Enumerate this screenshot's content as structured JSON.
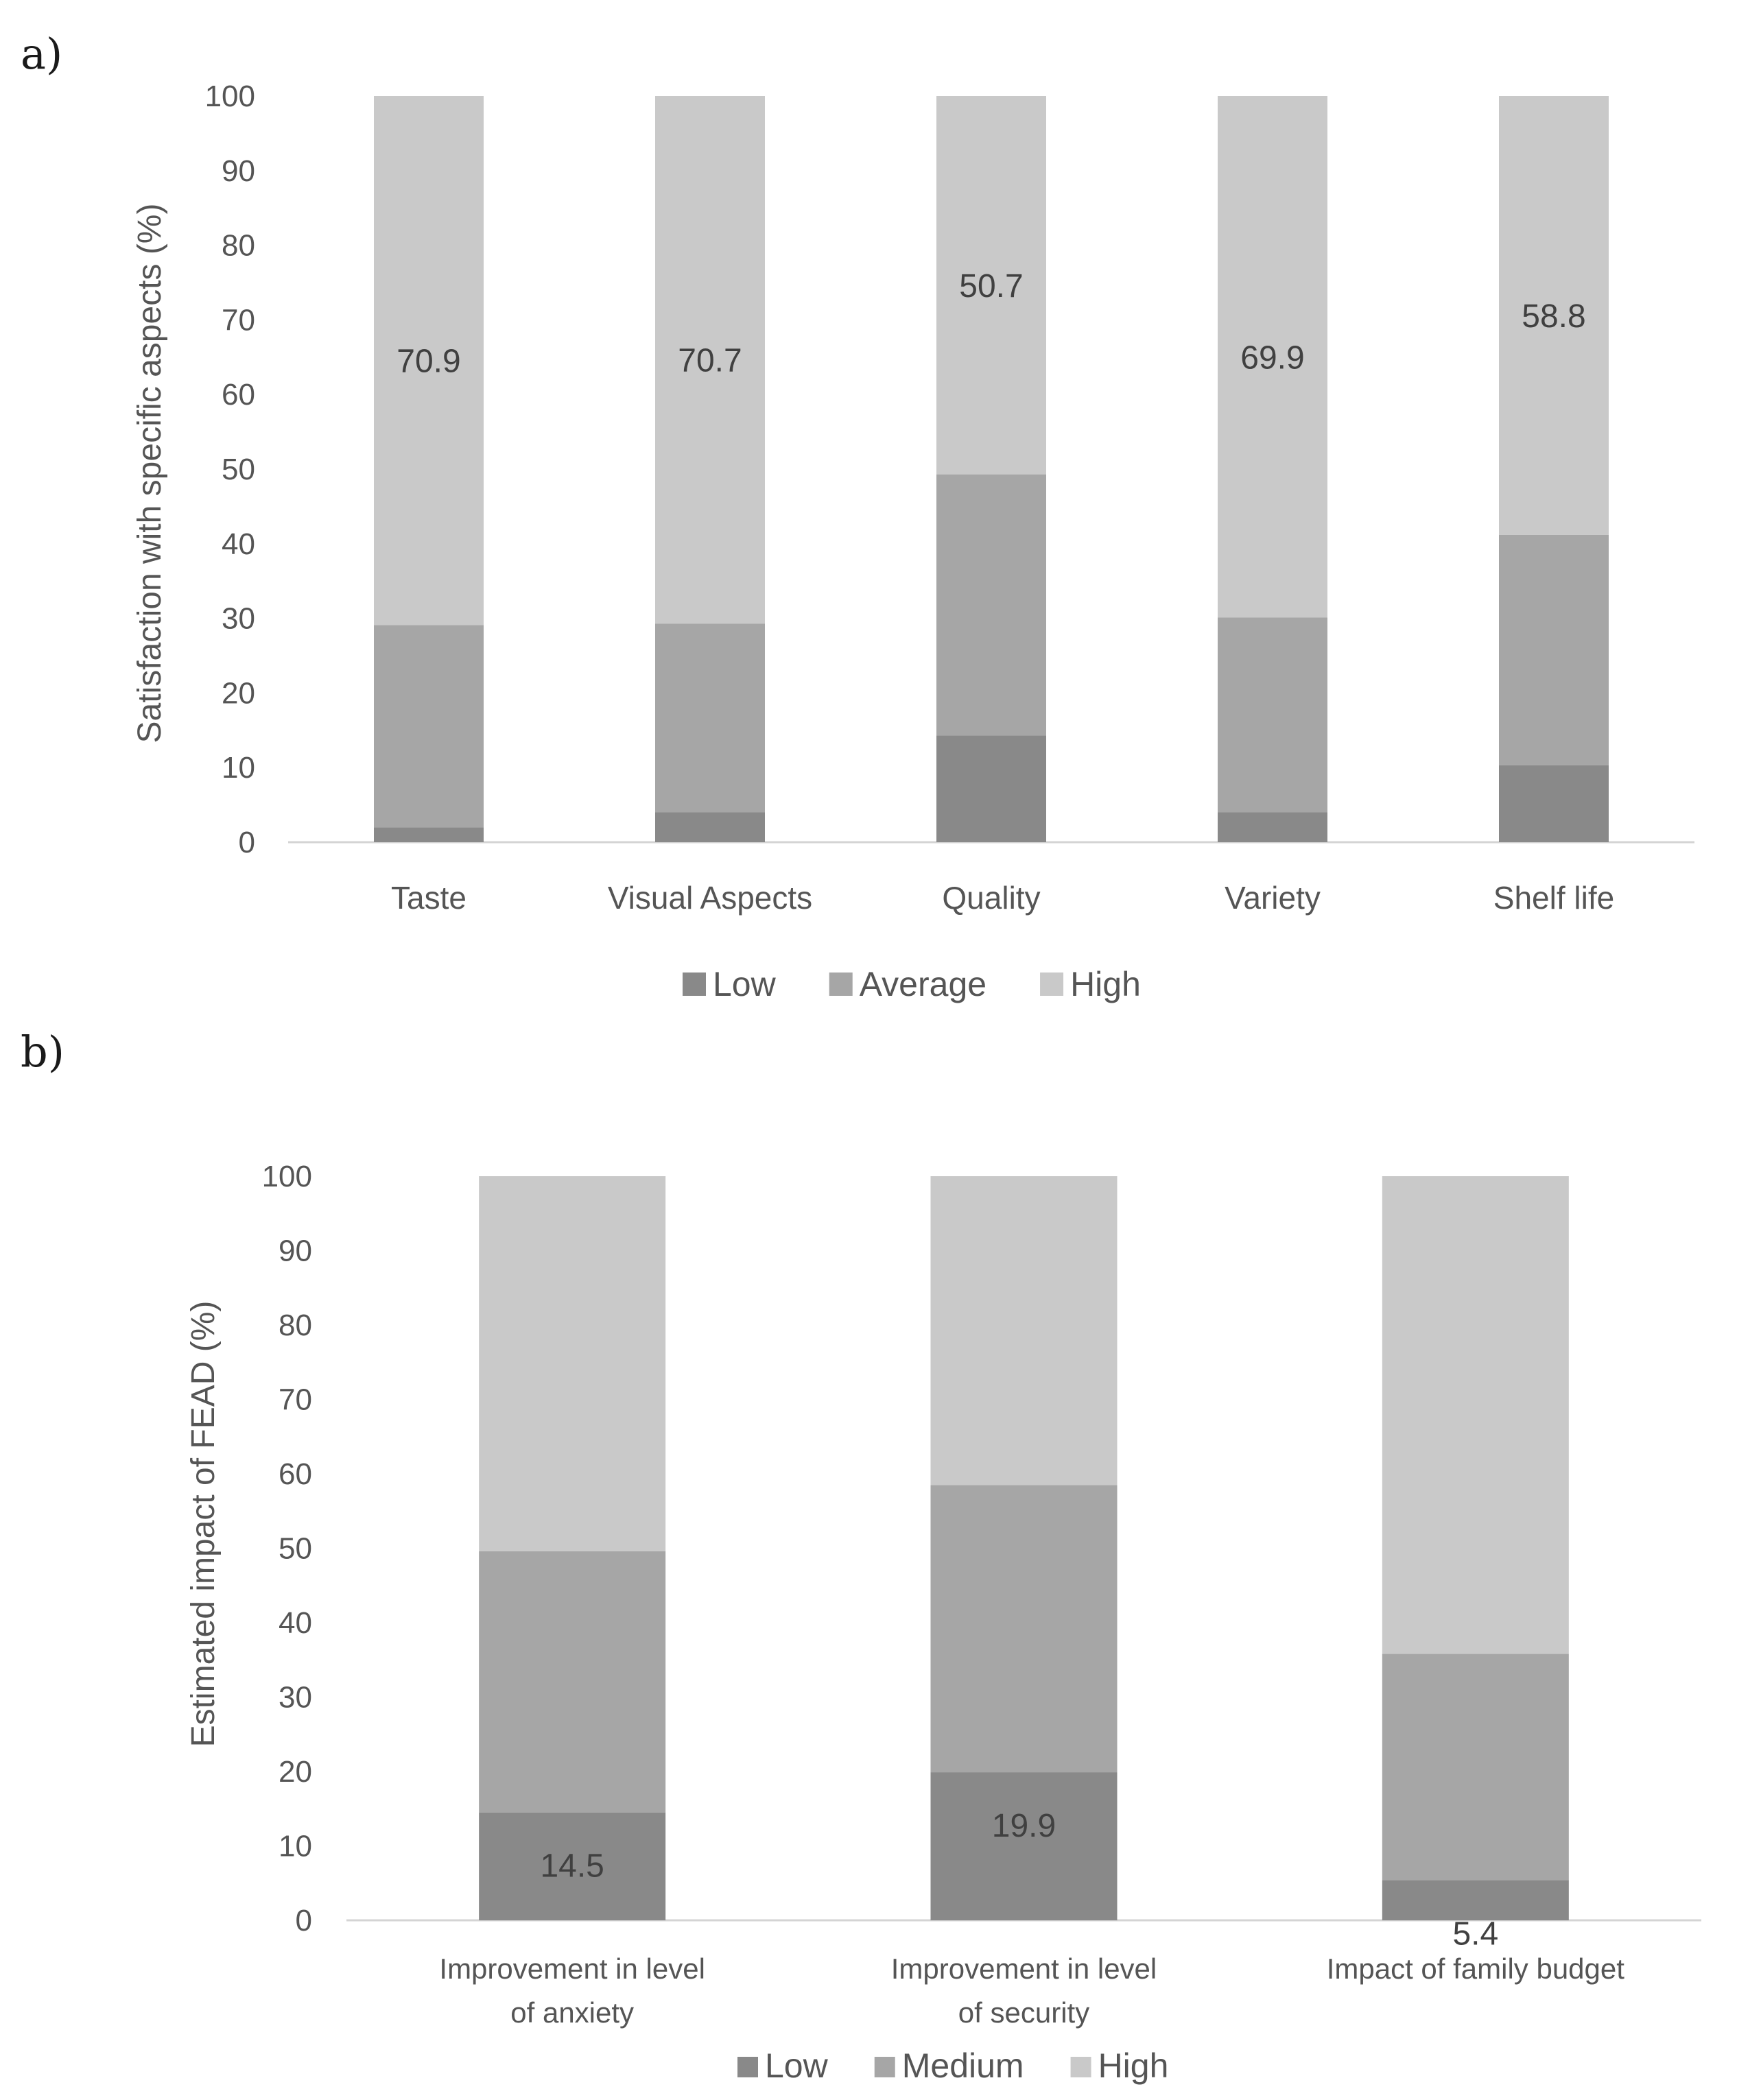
{
  "chart_data": [
    {
      "type": "bar",
      "stacked": true,
      "panel_label": "a)",
      "ylabel": "Satisfaction with specific aspects (%)",
      "xlabel": "",
      "ylim": [
        0,
        100
      ],
      "yticks": [
        0,
        10,
        20,
        30,
        40,
        50,
        60,
        70,
        80,
        90,
        100
      ],
      "categories": [
        "Taste",
        "Visual Aspects",
        "Quality",
        "Variety",
        "Shelf life"
      ],
      "series": [
        {
          "name": "Low",
          "color": "#898989",
          "values": [
            2.0,
            4.0,
            14.3,
            4.0,
            10.3
          ]
        },
        {
          "name": "Average",
          "color": "#a6a6a6",
          "values": [
            27.1,
            25.3,
            35.0,
            26.1,
            30.9
          ]
        },
        {
          "name": "High",
          "color": "#c9c9c9",
          "values": [
            70.9,
            70.7,
            50.7,
            69.9,
            58.8
          ]
        }
      ],
      "data_labels": {
        "series": "High",
        "values": [
          "70.9",
          "70.7",
          "50.7",
          "69.9",
          "58.8"
        ]
      },
      "legend_position": "bottom-center"
    },
    {
      "type": "bar",
      "stacked": true,
      "panel_label": "b)",
      "ylabel": "Estimated impact of FEAD (%)",
      "xlabel": "",
      "ylim": [
        0,
        100
      ],
      "yticks": [
        0,
        10,
        20,
        30,
        40,
        50,
        60,
        70,
        80,
        90,
        100
      ],
      "categories": [
        [
          "Improvement in level",
          "of anxiety"
        ],
        [
          "Improvement in level",
          "of security"
        ],
        [
          "Impact of family budget"
        ]
      ],
      "series": [
        {
          "name": "Low",
          "color": "#898989",
          "values": [
            14.5,
            19.9,
            5.4
          ]
        },
        {
          "name": "Medium",
          "color": "#a6a6a6",
          "values": [
            35.1,
            38.6,
            30.4
          ]
        },
        {
          "name": "High",
          "color": "#c9c9c9",
          "values": [
            50.4,
            41.5,
            64.2
          ]
        }
      ],
      "data_labels": {
        "series": "Low",
        "values": [
          "14.5",
          "19.9",
          "5.4"
        ]
      },
      "legend_position": "bottom-center"
    }
  ]
}
